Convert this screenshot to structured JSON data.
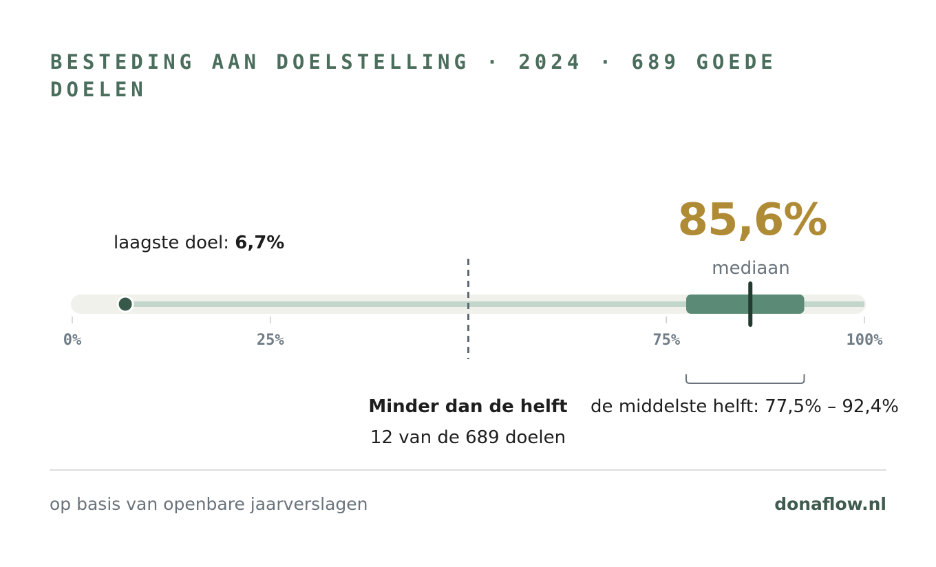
{
  "title": "Besteding aan doelstelling · 2024 · 689 goede doelen",
  "chart_data": {
    "type": "box",
    "unit": "%",
    "axis": {
      "min": 0,
      "max": 100,
      "ticks": [
        0,
        25,
        75,
        100
      ],
      "tick_labels": [
        "0%",
        "25%",
        "75%",
        "100%"
      ]
    },
    "minimum": 6.7,
    "q1": 77.5,
    "median": 85.6,
    "q3": 92.4,
    "maximum": 100,
    "threshold": 50,
    "below_threshold_count": 12,
    "total_count": 689
  },
  "labels": {
    "min_prefix": "laagste doel:",
    "min_value": "6,7%",
    "median_value": "85,6%",
    "median_label": "mediaan",
    "below_title": "Minder dan de helft",
    "below_count": "12 van de 689 doelen",
    "iqr_label": "de middelste helft: 77,5% – 92,4%"
  },
  "footer": {
    "source": "op basis van openbare jaarverslagen",
    "brand": "donaflow.nl"
  },
  "colors": {
    "title": "#4a6d5c",
    "median": "#b08b36",
    "iqr_box": "#5b8b76",
    "whisker": "#c2d6cb",
    "track": "#f1f1ec",
    "dot": "#37594a"
  }
}
